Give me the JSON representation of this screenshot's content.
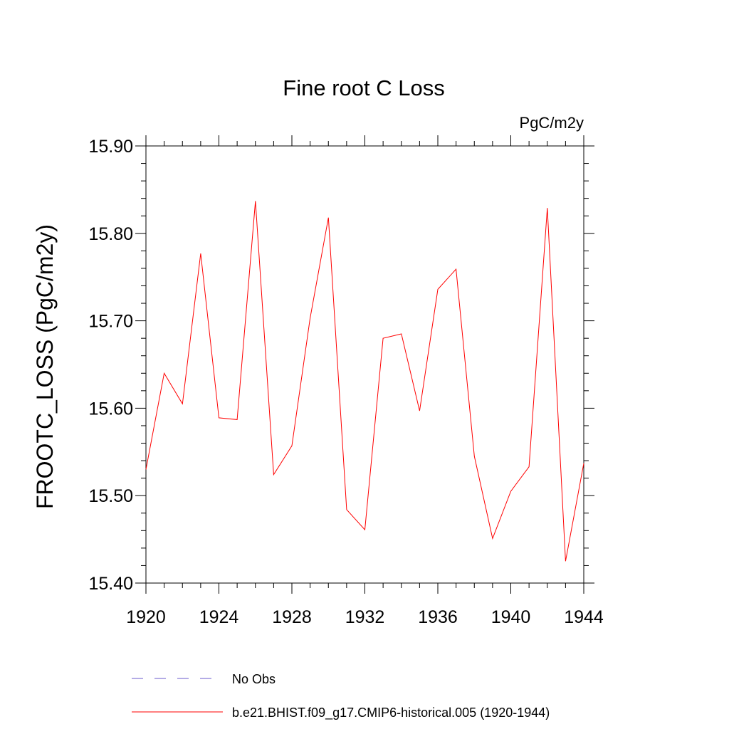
{
  "chart_data": {
    "type": "line",
    "title": "Fine root C Loss",
    "units_label": "PgC/m2y",
    "ylabel": "FROOTC_LOSS  (PgC/m2y)",
    "xlabel": "",
    "xlim": [
      1920,
      1944
    ],
    "ylim": [
      15.4,
      15.9
    ],
    "x_ticks": [
      1920,
      1924,
      1928,
      1932,
      1936,
      1940,
      1944
    ],
    "y_ticks": [
      "15.40",
      "15.50",
      "15.60",
      "15.70",
      "15.80",
      "15.90"
    ],
    "grid": false,
    "legend_position": "bottom",
    "series": [
      {
        "name": "b.e21.BHIST.f09_g17.CMIP6-historical.005 (1920-1944)",
        "color": "#ff0000",
        "style": "solid",
        "x": [
          1920,
          1921,
          1922,
          1923,
          1924,
          1925,
          1926,
          1927,
          1928,
          1929,
          1930,
          1931,
          1932,
          1933,
          1934,
          1935,
          1936,
          1937,
          1938,
          1939,
          1940,
          1941,
          1942,
          1943,
          1944
        ],
        "y": [
          15.53,
          15.64,
          15.605,
          15.777,
          15.589,
          15.587,
          15.837,
          15.524,
          15.557,
          15.703,
          15.818,
          15.484,
          15.461,
          15.68,
          15.685,
          15.597,
          15.736,
          15.759,
          15.545,
          15.451,
          15.505,
          15.533,
          15.829,
          15.425,
          15.537
        ]
      }
    ],
    "legend": [
      {
        "label": "No Obs",
        "color": "#6a5acd",
        "style": "dashed"
      },
      {
        "label": "b.e21.BHIST.f09_g17.CMIP6-historical.005 (1920-1944)",
        "color": "#ff0000",
        "style": "solid"
      }
    ]
  }
}
